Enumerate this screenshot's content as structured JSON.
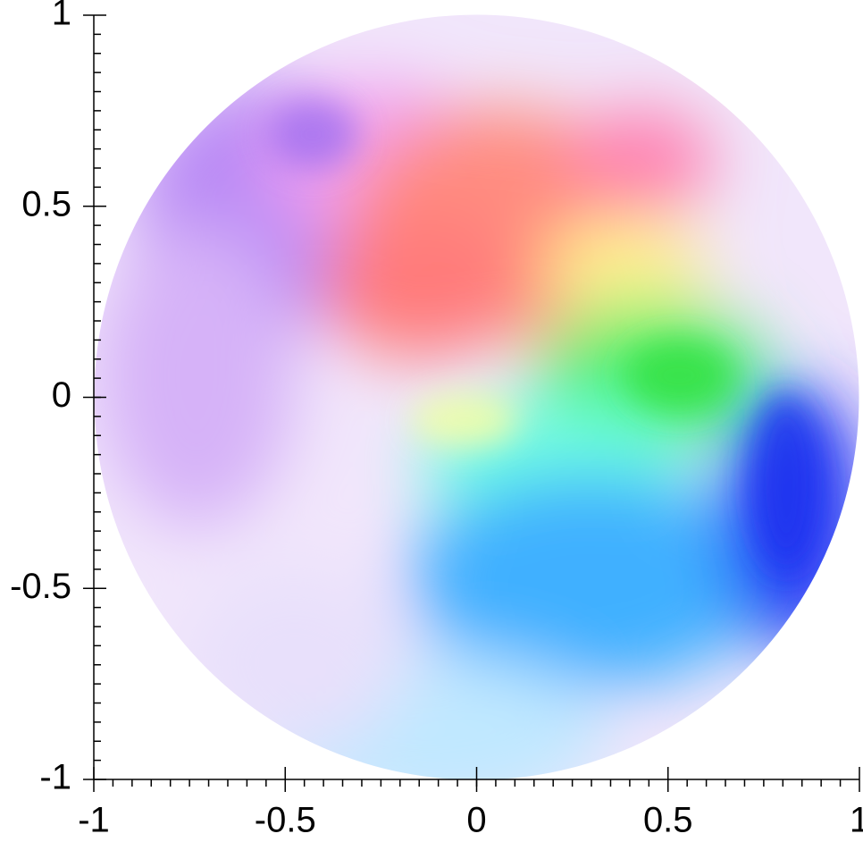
{
  "chart_data": {
    "type": "field",
    "xlim": [
      -1,
      1
    ],
    "ylim": [
      -1,
      1
    ],
    "xticks": [
      -1,
      -0.5,
      0,
      0.5,
      1
    ],
    "yticks": [
      -1,
      -0.5,
      0,
      0.5,
      1
    ]
  }
}
